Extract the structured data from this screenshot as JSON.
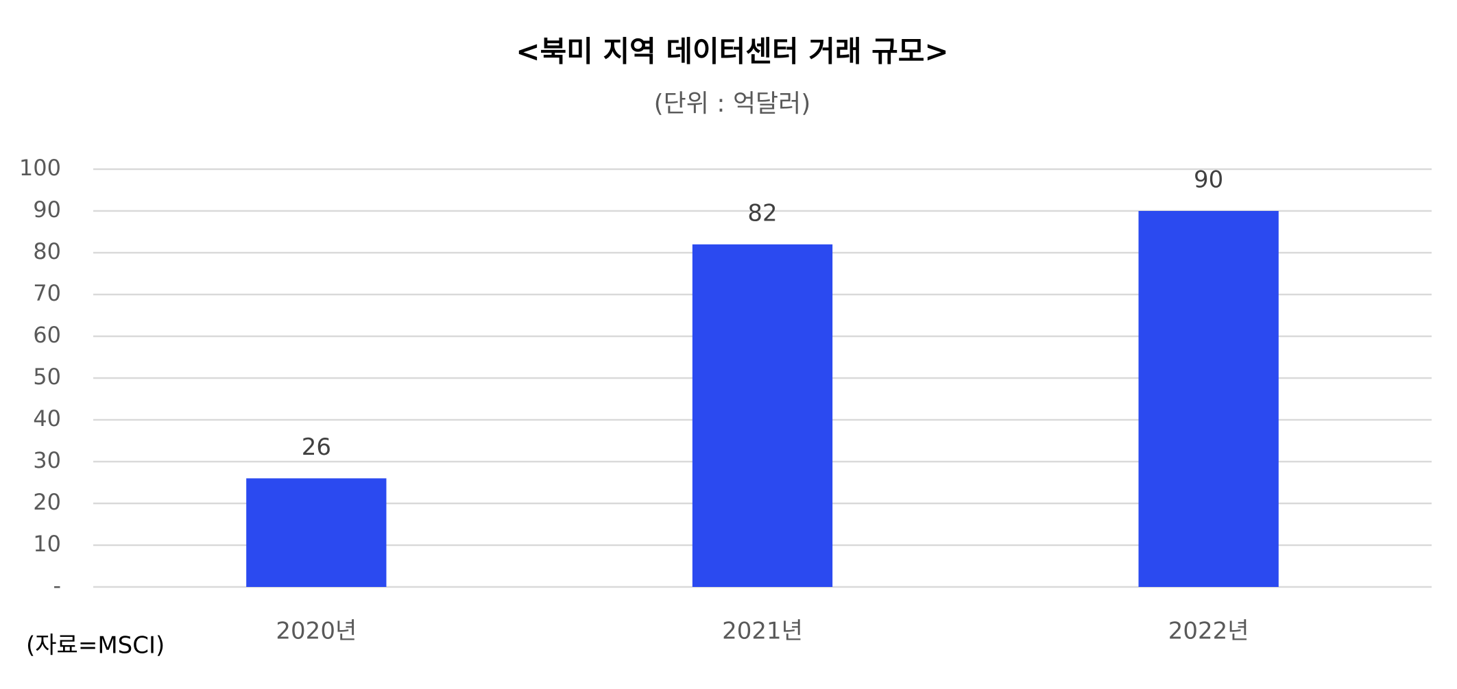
{
  "chart_data": {
    "type": "bar",
    "title": "<북미 지역 데이터센터 거래 규모>",
    "subtitle": "(단위 : 억달러)",
    "categories": [
      "2020년",
      "2021년",
      "2022년"
    ],
    "values": [
      26,
      82,
      90
    ],
    "color": "#2b4af0",
    "ylim": [
      0,
      100
    ],
    "yticks": [
      {
        "value": 0,
        "label": "-"
      },
      10,
      20,
      30,
      40,
      50,
      60,
      70,
      80,
      90,
      100
    ],
    "grid": true,
    "source": "(자료=MSCI)"
  }
}
